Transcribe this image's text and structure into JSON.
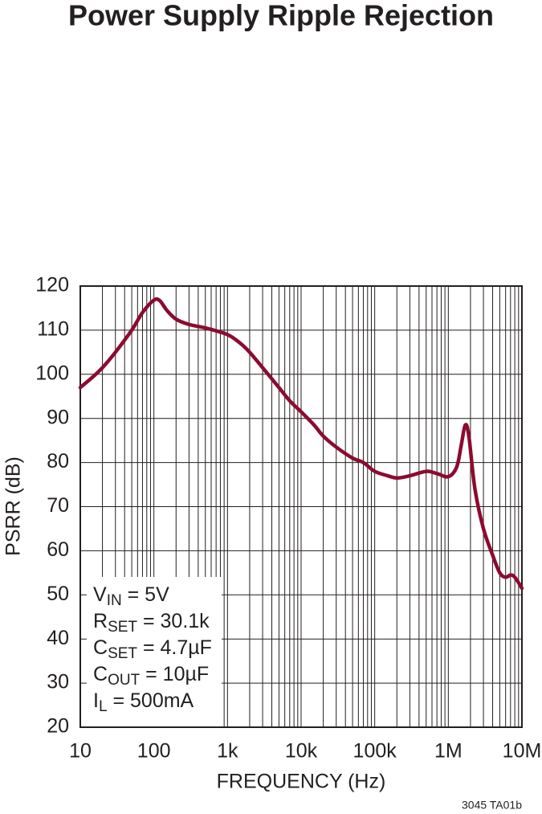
{
  "chart_data": {
    "type": "line",
    "title": "Power Supply Ripple Rejection",
    "xlabel": "FREQUENCY (Hz)",
    "ylabel": "PSRR (dB)",
    "footnote": "3045 TA01b",
    "xscale": "log",
    "grid": true,
    "minor_grid": true,
    "xlim": [
      10,
      10000000
    ],
    "ylim": [
      20,
      120
    ],
    "xticks": [
      10,
      100,
      {
        "value": 1000,
        "label": "1k"
      },
      {
        "value": 10000,
        "label": "10k"
      },
      {
        "value": 100000,
        "label": "100k"
      },
      {
        "value": 1000000,
        "label": "1M"
      },
      {
        "value": 10000000,
        "label": "10M"
      }
    ],
    "yticks": [
      20,
      30,
      40,
      50,
      60,
      70,
      80,
      90,
      100,
      110,
      120
    ],
    "annotations": [
      {
        "main": "V",
        "sub": "IN",
        "rest": " = 5V"
      },
      {
        "main": "R",
        "sub": "SET",
        "rest": " = 30.1k"
      },
      {
        "main": "C",
        "sub": "SET",
        "rest": " = 4.7µF"
      },
      {
        "main": "C",
        "sub": "OUT",
        "rest": " = 10µF"
      },
      {
        "main": "I",
        "sub": "L",
        "rest": " = 500mA"
      }
    ],
    "x": [
      10,
      15,
      20,
      30,
      50,
      70,
      100,
      120,
      150,
      200,
      300,
      500,
      1000,
      1500,
      2000,
      3000,
      5000,
      7000,
      10000,
      15000,
      20000,
      30000,
      50000,
      70000,
      100000,
      150000,
      200000,
      300000,
      500000,
      700000,
      1000000,
      1300000,
      1500000,
      1700000,
      1900000,
      2300000,
      3000000,
      4000000,
      5000000,
      6000000,
      7000000,
      8000000,
      10000000
    ],
    "series": [
      {
        "name": "PSRR",
        "color": "#8c0b30",
        "values": [
          97,
          99.5,
          101.5,
          105,
          110,
          114,
          116.8,
          116.7,
          114.5,
          112.5,
          111.3,
          110.5,
          109,
          107,
          105,
          101.5,
          97,
          94,
          91.5,
          88.5,
          86,
          83.5,
          81,
          80,
          78,
          77,
          76.5,
          77,
          78,
          77.5,
          76.8,
          79,
          84,
          88.5,
          86,
          74,
          65,
          59,
          55,
          54,
          54.5,
          54,
          51.5
        ]
      }
    ]
  }
}
